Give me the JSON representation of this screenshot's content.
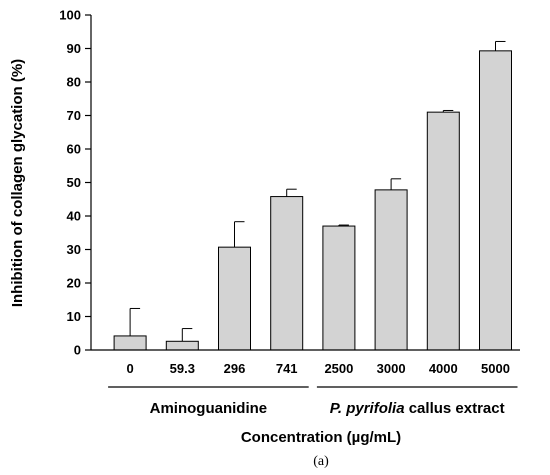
{
  "chart_data": {
    "type": "bar",
    "title": "",
    "xlabel": "Concentration (µg/mL)",
    "ylabel": "Inhibition of collagen glycation (%)",
    "ylim": [
      0,
      100
    ],
    "yticks": [
      0,
      10,
      20,
      30,
      40,
      50,
      60,
      70,
      80,
      90,
      100
    ],
    "categories": [
      "0",
      "59.3",
      "296",
      "741",
      "2500",
      "3000",
      "4000",
      "5000"
    ],
    "values": [
      4.2,
      2.6,
      30.7,
      45.8,
      37.0,
      47.8,
      71.0,
      89.3
    ],
    "error_upper": [
      8.2,
      3.8,
      7.6,
      2.2,
      0.3,
      3.3,
      0.5,
      2.8
    ],
    "bar_color": "#d3d3d3",
    "groups": [
      {
        "label_parts": [
          "",
          "Aminoguanidine"
        ],
        "first": 0,
        "last": 3
      },
      {
        "label_parts": [
          "P. pyrifolia",
          " callus extract"
        ],
        "first": 4,
        "last": 7
      }
    ],
    "grid": false,
    "caption": "(a)"
  }
}
